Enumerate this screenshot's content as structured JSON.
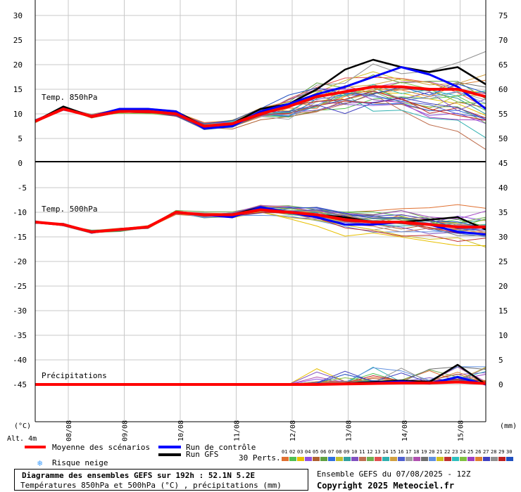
{
  "chart_data": [
    {
      "type": "line",
      "panel": "Temp. 850hPa",
      "title": "Temp. 850hPa",
      "left_axis_ticks": [
        30,
        25,
        20,
        15,
        10,
        5,
        0
      ],
      "right_axis_ticks": [
        75,
        70,
        65,
        60,
        55,
        50
      ],
      "x": [
        "07/08 12h",
        "08/08 00h",
        "08/08 12h",
        "09/08 00h",
        "09/08 12h",
        "10/08 00h",
        "10/08 12h",
        "11/08 00h",
        "11/08 12h",
        "12/08 00h",
        "12/08 12h",
        "13/08 00h",
        "13/08 12h",
        "14/08 00h",
        "14/08 12h",
        "15/08 00h",
        "15/08 12h"
      ],
      "series": [
        {
          "name": "Moyenne des scénarios",
          "color": "#ff0000",
          "values": [
            8.5,
            11,
            9.5,
            10.5,
            10.5,
            10,
            7.5,
            8,
            10,
            11.5,
            13.5,
            14.5,
            15.5,
            15.5,
            15,
            15,
            13.5
          ]
        },
        {
          "name": "Run de contrôle",
          "color": "#0000ff",
          "values": [
            8.5,
            11,
            9.5,
            11,
            11,
            10.5,
            7,
            7.5,
            10.5,
            12,
            14,
            15.5,
            17.5,
            19.5,
            18,
            15.5,
            11
          ]
        },
        {
          "name": "Run GFS",
          "color": "#000000",
          "values": [
            8.5,
            11.5,
            9.5,
            11,
            11,
            10.5,
            7.5,
            8,
            11,
            12,
            15,
            19,
            21,
            19.5,
            18.5,
            19.5,
            16
          ]
        }
      ]
    },
    {
      "type": "line",
      "panel": "Temp. 500hPa",
      "title": "Temp. 500hPa",
      "left_axis_ticks": [
        -5,
        -10,
        -15,
        -20,
        -25,
        -30,
        -35,
        -40,
        -45
      ],
      "right_axis_ticks": [
        45,
        40,
        35,
        30,
        25,
        20,
        15,
        10,
        5,
        0
      ],
      "x": [
        "07/08 12h",
        "08/08 00h",
        "08/08 12h",
        "09/08 00h",
        "09/08 12h",
        "10/08 00h",
        "10/08 12h",
        "11/08 00h",
        "11/08 12h",
        "12/08 00h",
        "12/08 12h",
        "13/08 00h",
        "13/08 12h",
        "14/08 00h",
        "14/08 12h",
        "15/08 00h",
        "15/08 12h"
      ],
      "series": [
        {
          "name": "Moyenne des scénarios",
          "color": "#ff0000",
          "values": [
            -12,
            -12.5,
            -14,
            -13.5,
            -13,
            -10,
            -10.5,
            -10.5,
            -9.5,
            -10,
            -10.5,
            -11.5,
            -12,
            -12,
            -12.5,
            -13,
            -13
          ]
        },
        {
          "name": "Run de contrôle",
          "color": "#0000ff",
          "values": [
            -12,
            -12.5,
            -14,
            -13.5,
            -13,
            -10,
            -10.5,
            -11,
            -9,
            -10,
            -11,
            -12.5,
            -12.5,
            -12,
            -12.5,
            -14,
            -14.5
          ]
        },
        {
          "name": "Run GFS",
          "color": "#000000",
          "values": [
            -12,
            -12.5,
            -14,
            -13.5,
            -13,
            -10,
            -10.5,
            -10.5,
            -9,
            -10,
            -10.5,
            -11,
            -12,
            -12,
            -11.5,
            -11,
            -13.5
          ]
        }
      ]
    },
    {
      "type": "line",
      "panel": "Précipitations",
      "title": "Précipitations",
      "unit": "(mm)",
      "series": [
        {
          "name": "Moyenne des scénarios",
          "color": "#ff0000",
          "values": [
            0,
            0,
            0,
            0,
            0,
            0,
            0,
            0,
            0,
            0,
            0,
            0.1,
            0.2,
            0.3,
            0.3,
            0.5,
            0.2
          ]
        },
        {
          "name": "Run de contrôle",
          "color": "#0000ff",
          "values": [
            0,
            0,
            0,
            0,
            0,
            0,
            0,
            0,
            0,
            0,
            0,
            0.1,
            0.3,
            0.6,
            0.2,
            1.5,
            0
          ]
        },
        {
          "name": "Run GFS",
          "color": "#000000",
          "values": [
            0,
            0,
            0,
            0,
            0,
            0,
            0,
            0,
            0,
            0,
            0,
            0.2,
            0.5,
            0.8,
            0.5,
            4,
            0
          ]
        }
      ]
    }
  ],
  "x_tick_labels": [
    "08/08",
    "09/08",
    "10/08",
    "11/08",
    "12/08",
    "13/08",
    "14/08",
    "15/08"
  ],
  "left_unit": "(°C)",
  "right_unit": "(mm)",
  "altitude": "Alt. 4m",
  "legend": {
    "mean": "Moyenne des scénarios",
    "control": "Run de contrôle",
    "gfs": "Run GFS",
    "snow": "Risque neige",
    "perts": "30 Perts.",
    "pert_ids": [
      "01",
      "02",
      "03",
      "04",
      "05",
      "06",
      "07",
      "08",
      "09",
      "10",
      "11",
      "12",
      "13",
      "14",
      "15",
      "16",
      "17",
      "18",
      "19",
      "20",
      "21",
      "22",
      "23",
      "24",
      "25",
      "26",
      "27",
      "28",
      "29",
      "30"
    ],
    "pert_colors": [
      "#e07030",
      "#50c050",
      "#e8c000",
      "#9050e0",
      "#b06030",
      "#60a040",
      "#3070e0",
      "#c0c030",
      "#30a0a0",
      "#8050c0",
      "#c07050",
      "#70b050",
      "#e05050",
      "#30b0b0",
      "#d0a040",
      "#5060d0",
      "#a0a0a0",
      "#b050b0",
      "#707070",
      "#6090e0",
      "#d0c020",
      "#c03030",
      "#30c0c0",
      "#80c040",
      "#a040c0",
      "#e08030",
      "#4040c0",
      "#909090",
      "#c02020",
      "#2050c0"
    ],
    "colors": {
      "mean": "#ff0000",
      "control": "#0000ff",
      "gfs": "#000000",
      "snow": "#40a0ff"
    }
  },
  "footer": {
    "title": "Diagramme des ensembles GEFS sur 192h : 52.1N 5.2E",
    "subtitle": "Températures 850hPa et 500hPa (°C) , précipitations (mm)",
    "ensemble": "Ensemble GEFS du 07/08/2025 - 12Z",
    "copyright": "Copyright 2025 Meteociel.fr"
  }
}
